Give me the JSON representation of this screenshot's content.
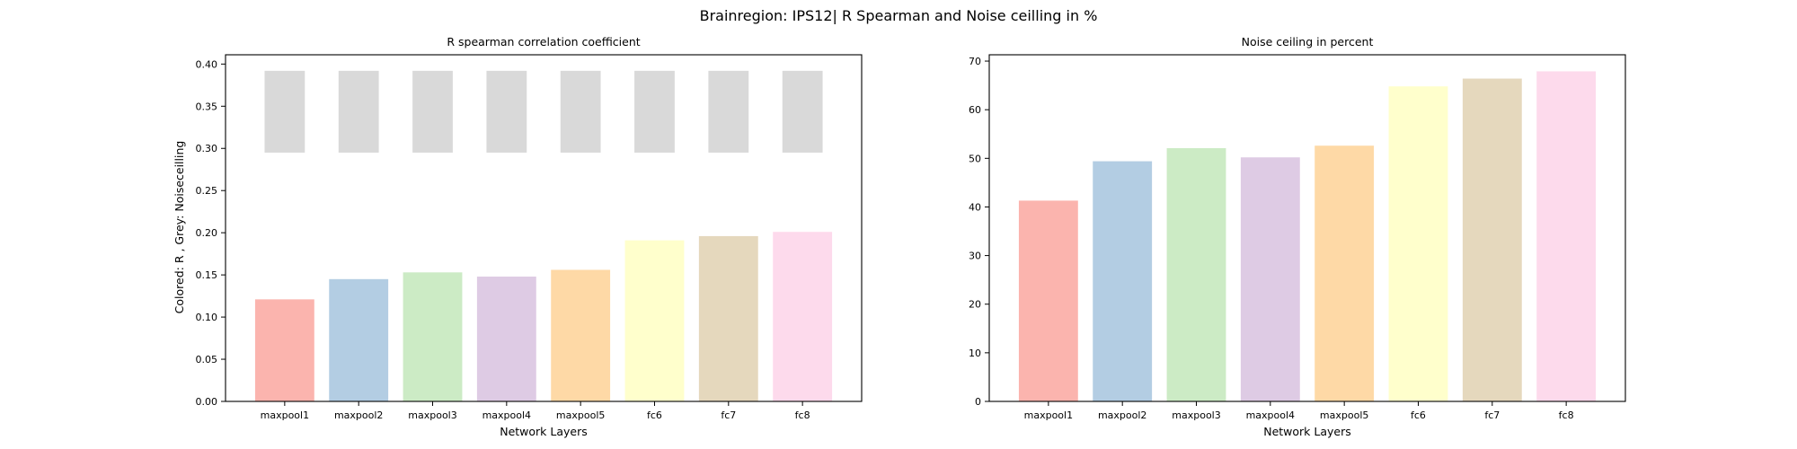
{
  "figure": {
    "suptitle": "Brainregion: IPS12| R Spearman and Noise ceilling in %"
  },
  "colors": [
    "#fbb4ae",
    "#b3cde3",
    "#ccebc5",
    "#decbe4",
    "#fed9a6",
    "#ffffcc",
    "#e5d8bd",
    "#fddaec"
  ],
  "noise_band_color": "#d9d9d9",
  "chart_data": [
    {
      "type": "bar",
      "title": "R spearman correlation coefficient",
      "xlabel": "Network Layers",
      "ylabel": "Colored: R , Grey: Noiseceilling",
      "categories": [
        "maxpool1",
        "maxpool2",
        "maxpool3",
        "maxpool4",
        "maxpool5",
        "fc6",
        "fc7",
        "fc8"
      ],
      "values": [
        0.121,
        0.145,
        0.153,
        0.148,
        0.156,
        0.191,
        0.196,
        0.201
      ],
      "noise_ceiling_range": [
        0.295,
        0.392
      ],
      "ylim": [
        0,
        0.411
      ],
      "yticks": [
        "0.00",
        "0.05",
        "0.10",
        "0.15",
        "0.20",
        "0.25",
        "0.30",
        "0.35",
        "0.40"
      ],
      "grid": false,
      "legend": "none"
    },
    {
      "type": "bar",
      "title": "Noise ceiling in percent",
      "xlabel": "Network Layers",
      "ylabel": "",
      "categories": [
        "maxpool1",
        "maxpool2",
        "maxpool3",
        "maxpool4",
        "maxpool5",
        "fc6",
        "fc7",
        "fc8"
      ],
      "values": [
        41.3,
        49.4,
        52.1,
        50.2,
        52.6,
        64.8,
        66.4,
        67.9
      ],
      "ylim": [
        0,
        71.3
      ],
      "yticks": [
        "0",
        "10",
        "20",
        "30",
        "40",
        "50",
        "60",
        "70"
      ],
      "grid": false,
      "legend": "none"
    }
  ]
}
